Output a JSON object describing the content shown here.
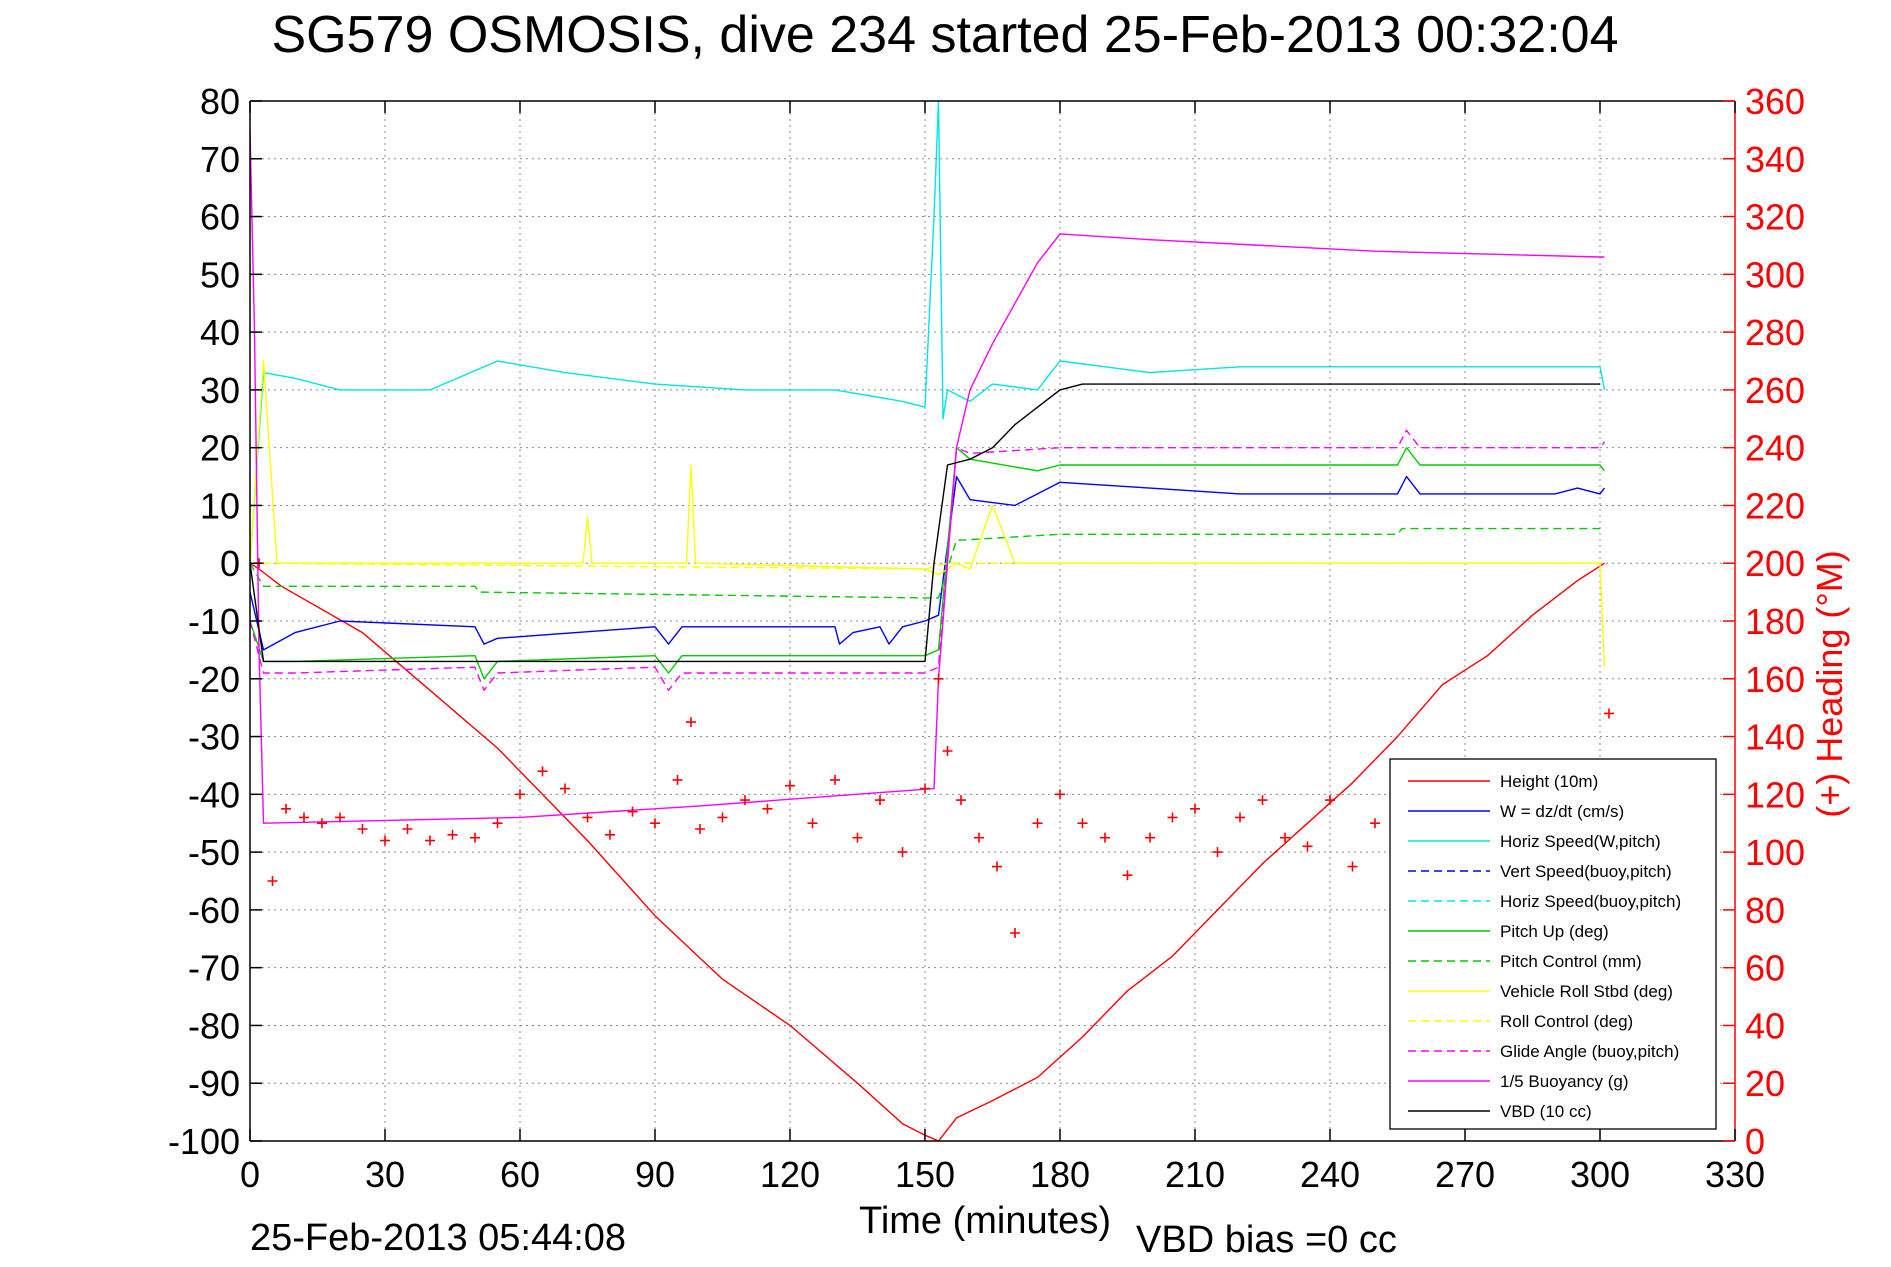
{
  "chart_data": {
    "type": "line",
    "title": "SG579 OSMOSIS, dive 234 started 25-Feb-2013 00:32:04",
    "xlabel": "Time (minutes)",
    "ylabel_right": "(+) Heading (°M)",
    "footer_left": "25-Feb-2013 05:44:08",
    "footer_right": "VBD bias =0 cc",
    "xlim": [
      0,
      330
    ],
    "ylim": [
      -100,
      80
    ],
    "ylim_right": [
      0,
      360
    ],
    "xticks": [
      0,
      30,
      60,
      90,
      120,
      150,
      180,
      210,
      240,
      270,
      300,
      330
    ],
    "yticks": [
      -100,
      -90,
      -80,
      -70,
      -60,
      -50,
      -40,
      -30,
      -20,
      -10,
      0,
      10,
      20,
      30,
      40,
      50,
      60,
      70,
      80
    ],
    "yticks_right": [
      0,
      20,
      40,
      60,
      80,
      100,
      120,
      140,
      160,
      180,
      200,
      220,
      240,
      260,
      280,
      300,
      320,
      340,
      360
    ],
    "grid": true,
    "legend_position": "bottom-right",
    "legend": [
      {
        "label": "Height (10m)",
        "color": "#ff0000",
        "dash": false
      },
      {
        "label": "W = dz/dt (cm/s)",
        "color": "#0000ff",
        "dash": false
      },
      {
        "label": "Horiz Speed(W,pitch)",
        "color": "#00e5e5",
        "dash": false
      },
      {
        "label": "Vert Speed(buoy,pitch)",
        "color": "#0000ff",
        "dash": true
      },
      {
        "label": "Horiz Speed(buoy,pitch)",
        "color": "#00e5e5",
        "dash": true
      },
      {
        "label": "Pitch Up (deg)",
        "color": "#00cc00",
        "dash": false
      },
      {
        "label": "Pitch Control (mm)",
        "color": "#00cc00",
        "dash": true
      },
      {
        "label": "Vehicle Roll Stbd (deg)",
        "color": "#ffff00",
        "dash": false
      },
      {
        "label": "Roll Control (deg)",
        "color": "#ffff00",
        "dash": true
      },
      {
        "label": "Glide Angle (buoy,pitch)",
        "color": "#ff00ff",
        "dash": true
      },
      {
        "label": "1/5 Buoyancy (g)",
        "color": "#ff00ff",
        "dash": false
      },
      {
        "label": "VBD (10 cc)",
        "color": "#000000",
        "dash": false
      }
    ],
    "series": [
      {
        "name": "Height (10m)",
        "color": "#ff0000",
        "dash": false,
        "x": [
          0,
          2,
          7,
          25,
          40,
          55,
          75,
          90,
          105,
          120,
          135,
          145,
          150,
          153,
          157,
          165,
          175,
          185,
          195,
          205,
          215,
          225,
          235,
          245,
          255,
          265,
          275,
          285,
          295,
          301
        ],
        "y": [
          0,
          -1,
          -4,
          -12,
          -22,
          -32,
          -48,
          -61,
          -72,
          -80,
          -90,
          -97,
          -99,
          -100,
          -96,
          -93,
          -89,
          -82,
          -74,
          -68,
          -60,
          -52,
          -45,
          -38,
          -30,
          -21,
          -16,
          -9,
          -3,
          0
        ]
      },
      {
        "name": "W = dz/dt (cm/s)",
        "color": "#0000ff",
        "dash": false,
        "x": [
          0,
          3,
          10,
          20,
          50,
          52,
          55,
          90,
          93,
          96,
          130,
          131,
          134,
          140,
          142,
          145,
          150,
          153,
          157,
          160,
          170,
          175,
          180,
          200,
          220,
          255,
          257,
          260,
          290,
          295,
          300,
          301
        ],
        "y": [
          -5,
          -15,
          -12,
          -10,
          -11,
          -14,
          -13,
          -11,
          -14,
          -11,
          -11,
          -14,
          -12,
          -11,
          -14,
          -11,
          -10,
          -9,
          15,
          11,
          10,
          12,
          14,
          13,
          12,
          12,
          15,
          12,
          12,
          13,
          12,
          13
        ]
      },
      {
        "name": "Horiz Speed(W,pitch)",
        "color": "#00e5e5",
        "dash": false,
        "x": [
          0,
          3,
          10,
          20,
          40,
          55,
          70,
          90,
          110,
          130,
          145,
          150,
          152,
          153,
          154,
          155,
          160,
          165,
          175,
          180,
          200,
          220,
          240,
          260,
          280,
          300,
          301
        ],
        "y": [
          0,
          33,
          32,
          30,
          30,
          35,
          33,
          31,
          30,
          30,
          28,
          27,
          60,
          80,
          25,
          30,
          28,
          31,
          30,
          35,
          33,
          34,
          34,
          34,
          34,
          34,
          30
        ]
      },
      {
        "name": "Pitch Up (deg)",
        "color": "#00cc00",
        "dash": false,
        "x": [
          0,
          3,
          10,
          50,
          52,
          55,
          90,
          93,
          96,
          150,
          153,
          157,
          160,
          175,
          180,
          255,
          257,
          260,
          300,
          301
        ],
        "y": [
          -10,
          -17,
          -17,
          -16,
          -20,
          -17,
          -16,
          -19,
          -16,
          -16,
          -15,
          20,
          18,
          16,
          17,
          17,
          20,
          17,
          17,
          16
        ]
      },
      {
        "name": "Pitch Control (mm)",
        "color": "#00cc00",
        "dash": true,
        "x": [
          0,
          3,
          50,
          51,
          150,
          153,
          157,
          158,
          180,
          181,
          255,
          256,
          300
        ],
        "y": [
          0,
          -4,
          -4,
          -5,
          -6,
          -6,
          4,
          4,
          5,
          5,
          5,
          6,
          6
        ]
      },
      {
        "name": "Vehicle Roll Stbd (deg)",
        "color": "#ffff00",
        "dash": false,
        "x": [
          0,
          3,
          6,
          74,
          75,
          76,
          97,
          98,
          99,
          150,
          153,
          157,
          160,
          165,
          170,
          178,
          180,
          200,
          220,
          240,
          260,
          280,
          300,
          301
        ],
        "y": [
          0,
          35,
          0,
          0,
          8,
          0,
          0,
          17,
          0,
          -1,
          -2,
          0,
          -1,
          10,
          0,
          0,
          0,
          0,
          0,
          0,
          0,
          0,
          0,
          -18
        ]
      },
      {
        "name": "Roll Control (deg)",
        "color": "#ffff00",
        "dash": true,
        "x": [
          0,
          150,
          155,
          300
        ],
        "y": [
          0,
          -1,
          0,
          0
        ]
      },
      {
        "name": "Glide Angle (buoy,pitch)",
        "color": "#ff00ff",
        "dash": true,
        "x": [
          0,
          3,
          10,
          50,
          52,
          55,
          90,
          93,
          96,
          150,
          153,
          157,
          160,
          180,
          255,
          257,
          260,
          300,
          301
        ],
        "y": [
          -10,
          -19,
          -19,
          -18,
          -22,
          -19,
          -18,
          -22,
          -19,
          -19,
          -18,
          20,
          19,
          20,
          20,
          23,
          20,
          20,
          21
        ]
      },
      {
        "name": "1/5 Buoyancy (g)",
        "color": "#ff00ff",
        "dash": false,
        "x": [
          0,
          1,
          2,
          3,
          60,
          100,
          152,
          153,
          157,
          160,
          165,
          170,
          175,
          180,
          200,
          250,
          300,
          301
        ],
        "y": [
          75,
          40,
          -15,
          -45,
          -44,
          -42,
          -39,
          -20,
          20,
          30,
          38,
          45,
          52,
          57,
          56,
          54,
          53,
          53
        ]
      },
      {
        "name": "VBD (10 cc)",
        "color": "#000000",
        "dash": false,
        "x": [
          0,
          3,
          150,
          152,
          155,
          160,
          165,
          170,
          175,
          180,
          185,
          200,
          250,
          300
        ],
        "y": [
          0,
          -17,
          -17,
          0,
          17,
          18,
          20,
          24,
          27,
          30,
          31,
          31,
          31,
          31
        ]
      },
      {
        "name": "(+) Heading (°M)",
        "color": "#ff0000",
        "axis": "right",
        "marker": "+",
        "x": [
          2,
          5,
          8,
          12,
          16,
          20,
          25,
          30,
          35,
          40,
          45,
          50,
          55,
          60,
          65,
          70,
          75,
          80,
          85,
          90,
          95,
          98,
          100,
          105,
          110,
          115,
          120,
          125,
          130,
          135,
          140,
          145,
          150,
          153,
          155,
          158,
          162,
          166,
          170,
          175,
          180,
          185,
          190,
          195,
          200,
          205,
          210,
          215,
          220,
          225,
          230,
          235,
          240,
          245,
          250,
          255,
          258,
          262,
          266,
          270,
          275,
          280,
          290,
          300,
          302
        ],
        "y": [
          200,
          90,
          115,
          112,
          110,
          112,
          108,
          104,
          108,
          104,
          106,
          105,
          110,
          120,
          128,
          122,
          112,
          106,
          114,
          110,
          125,
          145,
          108,
          112,
          118,
          115,
          123,
          110,
          125,
          105,
          118,
          100,
          122,
          160,
          135,
          118,
          105,
          95,
          72,
          110,
          120,
          110,
          105,
          92,
          105,
          112,
          115,
          100,
          112,
          118,
          105,
          102,
          118,
          95,
          110,
          112,
          105,
          108,
          113,
          110,
          108,
          112,
          110,
          112,
          148
        ]
      }
    ]
  }
}
